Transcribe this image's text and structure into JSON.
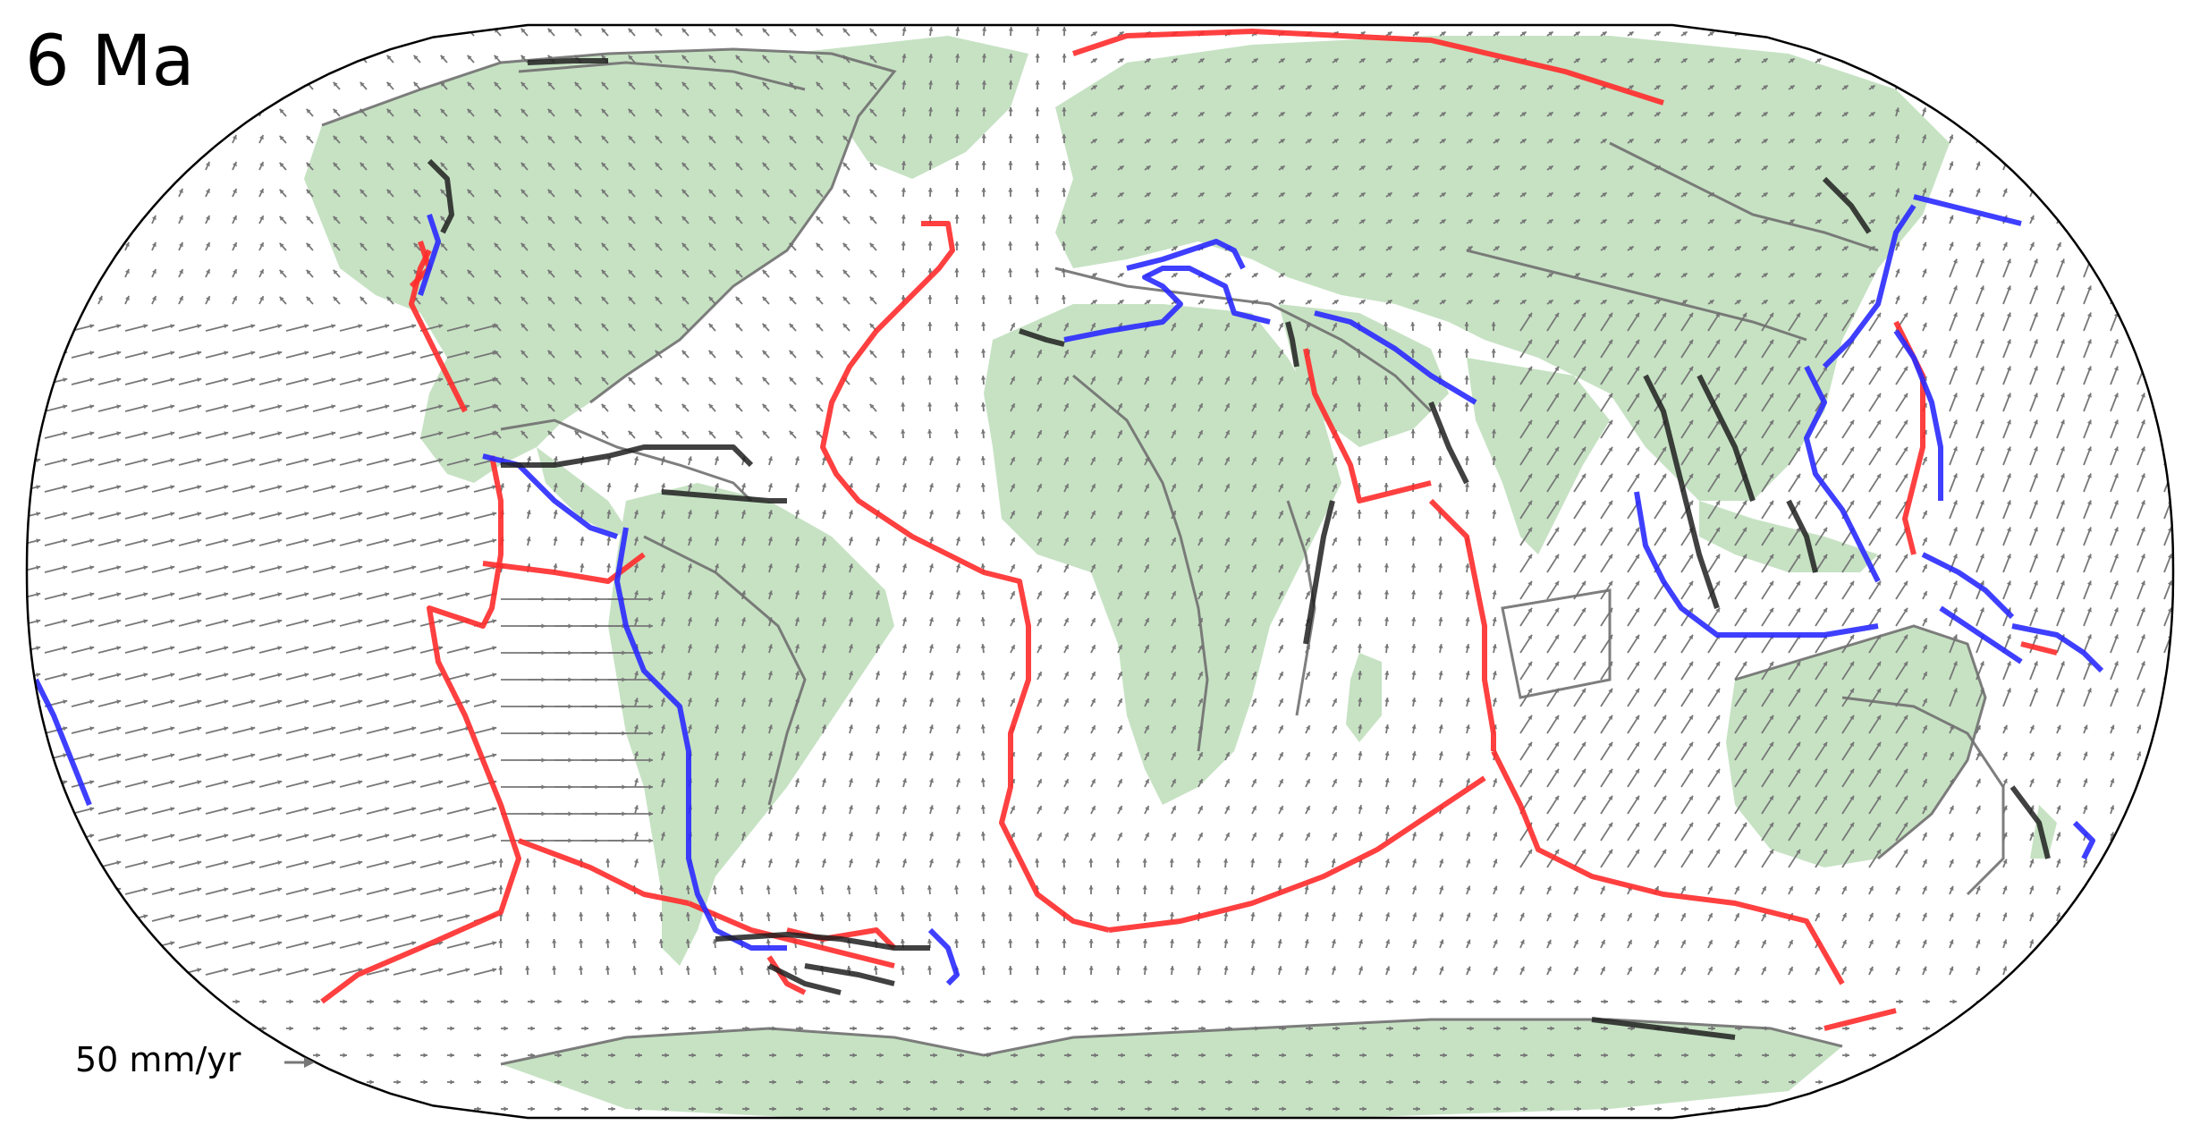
{
  "map": {
    "age_label": "6 Ma",
    "scale": {
      "label": "50 mm/yr",
      "velocity_mm_yr": 50
    },
    "projection": "robinson",
    "colors": {
      "land": "#c6e2c3",
      "ridge": "#ff2b2b",
      "subduction": "#2a2aff",
      "transform": "#202020",
      "plate_outline": "#707070",
      "vector": "#777777",
      "frame": "#000000"
    },
    "legend_keys": [
      "ridge",
      "subduction",
      "transform"
    ]
  }
}
